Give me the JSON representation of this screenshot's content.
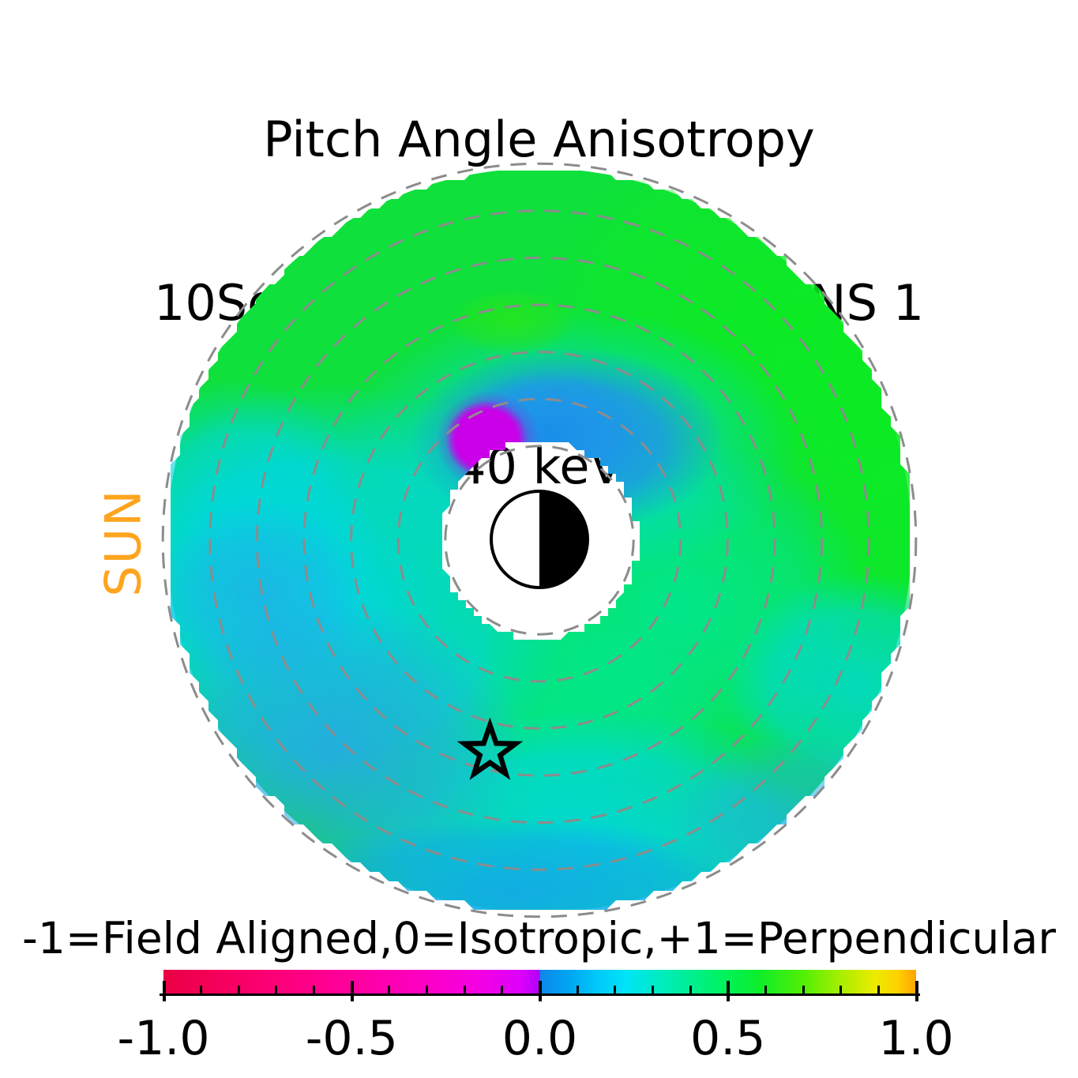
{
  "title": {
    "line1": "Pitch Angle Anisotropy",
    "line2": "10Sep2015, 1608 UT,  TWINS 1",
    "line3": "40 keV"
  },
  "sun_label": "SUN",
  "colorbar": {
    "label": "-1=Field Aligned,0=Isotropic,+1=Perpendicular",
    "tick_labels": [
      "-1.0",
      "-0.5",
      "0.0",
      "0.5",
      "1.0"
    ],
    "tick_values": [
      -1,
      -0.5,
      0,
      0.5,
      1
    ],
    "minor_tick_step": 0.1,
    "range": [
      -1,
      1
    ],
    "stops": [
      [
        0.0,
        "#e90043"
      ],
      [
        0.065,
        "#f4005a"
      ],
      [
        0.15,
        "#fc0078"
      ],
      [
        0.25,
        "#ff009e"
      ],
      [
        0.33,
        "#fe00bd"
      ],
      [
        0.42,
        "#f400e3"
      ],
      [
        0.475,
        "#dc00fa"
      ],
      [
        0.499,
        "#b000fb"
      ],
      [
        0.501,
        "#0d87e9"
      ],
      [
        0.54,
        "#00a7f2"
      ],
      [
        0.58,
        "#00ccfb"
      ],
      [
        0.615,
        "#00e4f7"
      ],
      [
        0.66,
        "#00ecc0"
      ],
      [
        0.7,
        "#00ef92"
      ],
      [
        0.745,
        "#00f25c"
      ],
      [
        0.79,
        "#0cee2b"
      ],
      [
        0.85,
        "#52ef04"
      ],
      [
        0.9,
        "#a8ee00"
      ],
      [
        0.945,
        "#eceb00"
      ],
      [
        0.975,
        "#fdd200"
      ],
      [
        1.0,
        "#ffa401"
      ]
    ]
  },
  "colors": {
    "sun_label": "#FFA41E",
    "ring_dashes": "#8c8c8c",
    "earth_outline": "#000000",
    "star_outline": "#000000",
    "background": "#ffffff"
  },
  "chart_data": {
    "type": "heatmap",
    "projection": "polar map, Earth-centered equatorial view, radial rings in Earth radii",
    "title": "Pitch Angle Anisotropy",
    "datetime_label": "10Sep2015, 1608 UT",
    "spacecraft": "TWINS 1",
    "energy_label": "40 keV",
    "sun_direction": "left",
    "radial_rings_re": [
      2,
      3,
      4,
      5,
      6,
      7,
      8
    ],
    "inner_data_hole_re": 2.1,
    "outer_data_edge_re": 7.9,
    "value_scale": {
      "min": -1,
      "max": 1,
      "meaning": "-1=Field Aligned, 0=Isotropic, +1=Perpendicular",
      "colormap_discontinuity_at": 0
    },
    "earth_symbol": "circle at origin, left half white (day), right half black (night)",
    "star_marker_position_re": {
      "x": -1.05,
      "y": 4.5
    },
    "regions": [
      {
        "location": "top and upper-right of annulus (widest area)",
        "approx_value": 0.45,
        "color": "#0fe03c"
      },
      {
        "location": "outer right edge band",
        "approx_value": 0.5,
        "color": "#0ceb22"
      },
      {
        "location": "inner ring right of / below central hole",
        "approx_value": 0.3,
        "color": "#00e795"
      },
      {
        "location": "mid-left ring and lower ring",
        "approx_value": 0.15,
        "color": "#00d7e6"
      },
      {
        "location": "bottom-left quadrant",
        "approx_value": 0.05,
        "color": "#2ba3e8"
      },
      {
        "location": "bottom fringe of annulus",
        "approx_value": 0.03,
        "color": "#14a4ec"
      },
      {
        "location": "arc hugging top of central hole",
        "approx_value": 0.02,
        "color": "#1b8ee9"
      },
      {
        "location": "compact blob at upper-left rim of central hole",
        "approx_value": -0.35,
        "color": "#c900e8"
      },
      {
        "location": "small bright patch above center, inside green zone",
        "approx_value": 0.55,
        "color": "#2be714"
      }
    ]
  }
}
